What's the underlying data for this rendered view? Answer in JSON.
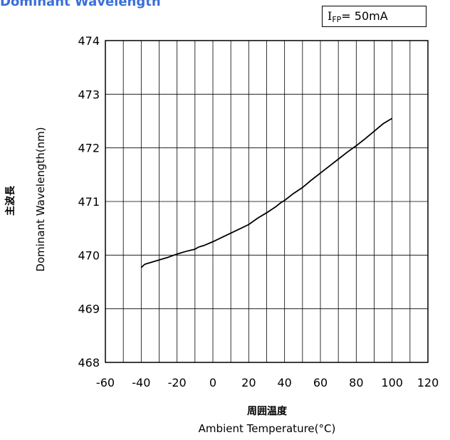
{
  "title": "Dominant Wavelength",
  "condition": {
    "main": "I",
    "sub": "FP",
    "rest": "= 50mA"
  },
  "chart_data": {
    "type": "line",
    "xlabel_jp": "周囲温度",
    "xlabel": "Ambient Temperature(°C)",
    "ylabel_jp": "主波長",
    "ylabel": "Dominant Wavelength(nm)",
    "xlim": [
      -60,
      120
    ],
    "ylim": [
      468,
      474
    ],
    "xticks": [
      "-60",
      "-40",
      "-20",
      "0",
      "20",
      "40",
      "60",
      "80",
      "100",
      "120"
    ],
    "yticks": [
      "474",
      "473",
      "472",
      "471",
      "470",
      "469",
      "468"
    ],
    "grid": true,
    "series": [
      {
        "color": "#000000",
        "x": [
          -40,
          -38,
          -35,
          -30,
          -25,
          -20,
          -15,
          -10,
          -8,
          -5,
          0,
          5,
          10,
          15,
          20,
          25,
          30,
          35,
          38,
          40,
          45,
          50,
          55,
          60,
          65,
          70,
          75,
          80,
          85,
          90,
          95,
          100
        ],
        "y": [
          469.77,
          469.83,
          469.86,
          469.91,
          469.96,
          470.02,
          470.07,
          470.11,
          470.15,
          470.18,
          470.25,
          470.33,
          470.41,
          470.49,
          470.57,
          470.69,
          470.79,
          470.9,
          470.98,
          471.02,
          471.15,
          471.26,
          471.4,
          471.53,
          471.66,
          471.79,
          471.92,
          472.04,
          472.17,
          472.31,
          472.45,
          472.55
        ]
      }
    ]
  }
}
